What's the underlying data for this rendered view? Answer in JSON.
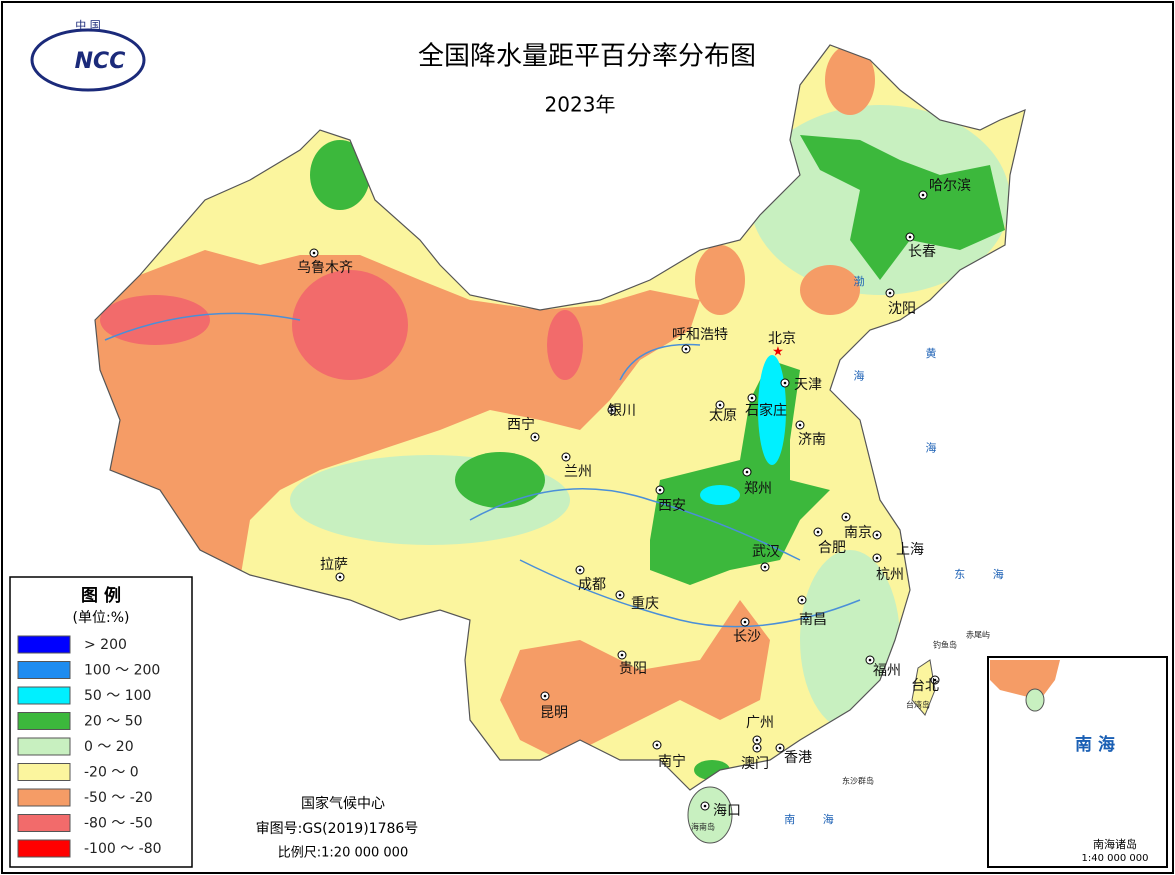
{
  "header": {
    "logo": {
      "top": "中 国",
      "text": "NCC"
    },
    "title": "全国降水量距平百分率分布图",
    "subtitle": "2023年"
  },
  "legend": {
    "title": "图 例",
    "unit": "(单位:%)",
    "items": [
      {
        "label": "> 200",
        "color": "#0000ff"
      },
      {
        "label": "100 ～ 200",
        "color": "#1e8cf0"
      },
      {
        "label": "50 ～ 100",
        "color": "#00f0ff"
      },
      {
        "label": "20 ～ 50",
        "color": "#3cb83c"
      },
      {
        "label": "0 ～ 20",
        "color": "#c8f0c0"
      },
      {
        "label": "-20 ～ 0",
        "color": "#fbf59e"
      },
      {
        "label": "-50 ～ -20",
        "color": "#f59c66"
      },
      {
        "label": "-80 ～ -50",
        "color": "#f26b6b"
      },
      {
        "label": "-100 ～ -80",
        "color": "#ff0000"
      }
    ]
  },
  "cities": [
    "乌鲁木齐",
    "呼和浩特",
    "北京",
    "天津",
    "石家庄",
    "太原",
    "济南",
    "银川",
    "西宁",
    "兰州",
    "西安",
    "郑州",
    "南京",
    "合肥",
    "上海",
    "杭州",
    "武汉",
    "成都",
    "重庆",
    "拉萨",
    "长沙",
    "南昌",
    "贵阳",
    "福州",
    "台北",
    "昆明",
    "广州",
    "南宁",
    "澳门",
    "香港",
    "海口",
    "哈尔滨",
    "长春",
    "沈阳"
  ],
  "seas": [
    "渤 海",
    "黄 海",
    "东 海",
    "南 海"
  ],
  "islands": [
    "钓鱼岛",
    "赤尾屿",
    "台湾岛",
    "东沙群岛",
    "海南岛"
  ],
  "footer": {
    "org": "国家气候中心",
    "approval": "审图号:GS(2019)1786号",
    "scale": "比例尺:1:20 000 000"
  },
  "inset": {
    "sea": "南 海",
    "islands": "南海诸岛",
    "scale": "1:40 000 000"
  }
}
